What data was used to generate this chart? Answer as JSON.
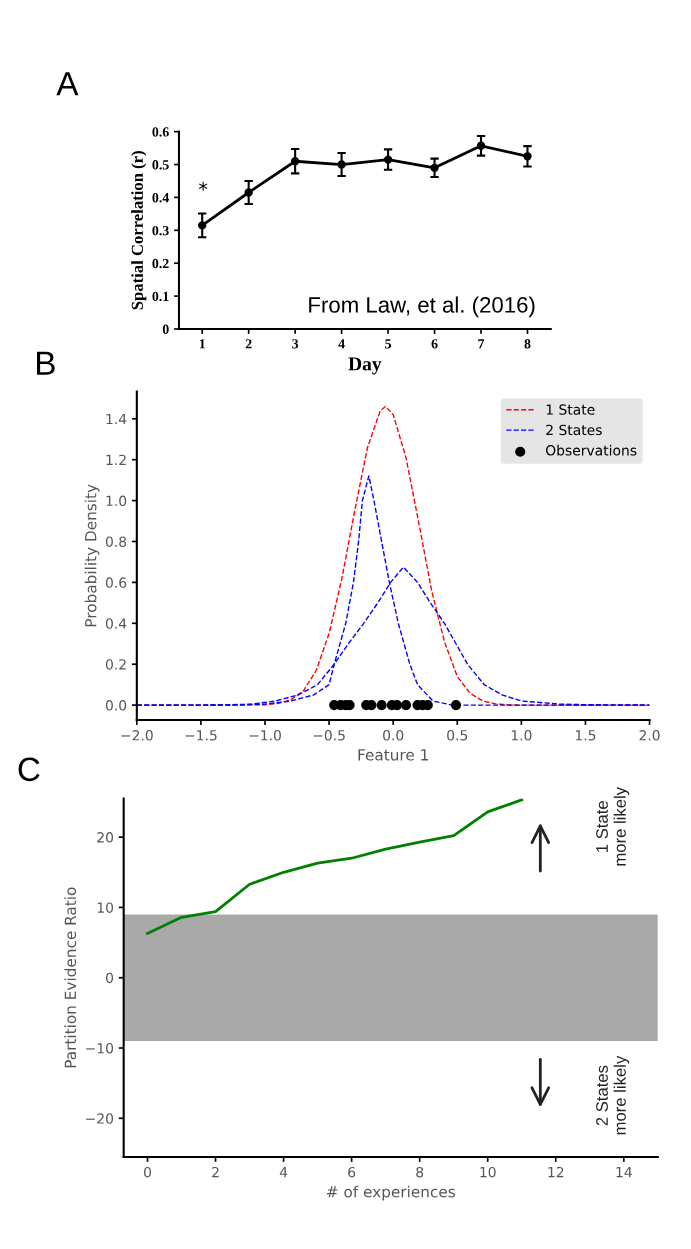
{
  "chart_data": [
    {
      "type": "line",
      "title": "A",
      "xlabel": "Day",
      "ylabel": "Spatial Correlation (r)",
      "x": [
        1,
        2,
        3,
        4,
        5,
        6,
        7,
        8
      ],
      "series": [
        {
          "color": "#000000",
          "values": [
            0.315,
            0.415,
            0.51,
            0.5,
            0.515,
            0.49,
            0.557,
            0.525
          ],
          "errors": [
            0.036,
            0.035,
            0.037,
            0.035,
            0.031,
            0.028,
            0.03,
            0.031
          ]
        }
      ],
      "marker": "circle",
      "xlim": [
        0.5,
        8.5
      ],
      "xticks": [
        1,
        2,
        3,
        4,
        5,
        6,
        7,
        8
      ],
      "ylim": [
        0,
        0.6
      ],
      "yticks": [
        0,
        0.1,
        0.2,
        0.3,
        0.4,
        0.5,
        0.6
      ],
      "annotations": [
        "*",
        "From Law, et al. (2016)"
      ]
    },
    {
      "type": "line",
      "title": "B",
      "xlabel": "Feature 1",
      "ylabel": "Probability Density",
      "line_style": "dashed",
      "legend": "top right",
      "series": [
        {
          "name": "1 State",
          "color": "#ff0000",
          "x": [
            -2,
            -1.5,
            -1.2,
            -1.0,
            -0.9,
            -0.8,
            -0.7,
            -0.6,
            -0.5,
            -0.4,
            -0.3,
            -0.2,
            -0.1,
            -0.06,
            0,
            0.1,
            0.2,
            0.3,
            0.4,
            0.5,
            0.6,
            0.7,
            0.8,
            0.9,
            1.0,
            1.5,
            2
          ],
          "values": [
            0,
            0,
            0,
            0.002,
            0.008,
            0.025,
            0.07,
            0.17,
            0.35,
            0.62,
            0.95,
            1.26,
            1.44,
            1.46,
            1.42,
            1.21,
            0.89,
            0.56,
            0.31,
            0.14,
            0.058,
            0.02,
            0.006,
            0.001,
            0,
            0,
            0
          ]
        },
        {
          "name": "2 States",
          "color": "#0000ff",
          "x": [
            -2,
            -1.5,
            -1.2,
            -1.0,
            -0.8,
            -0.62,
            -0.5,
            -0.46,
            -0.37,
            -0.31,
            -0.27,
            -0.24,
            -0.19,
            -0.15,
            -0.09,
            -0.03,
            0.04,
            0.13,
            0.19,
            0.31,
            0.46,
            0.7,
            1.0,
            1.5,
            2
          ],
          "values": [
            0,
            0,
            0.001,
            0.005,
            0.02,
            0.05,
            0.1,
            0.2,
            0.4,
            0.6,
            0.8,
            1.0,
            1.12,
            1.0,
            0.8,
            0.6,
            0.4,
            0.2,
            0.1,
            0.02,
            0,
            0,
            0,
            0,
            0
          ]
        },
        {
          "color": "#0000ff",
          "x": [
            -2,
            -1.5,
            -1.3,
            -1.1,
            -0.92,
            -0.74,
            -0.59,
            -0.46,
            -0.35,
            -0.23,
            -0.12,
            -0.02,
            0.08,
            0.19,
            0.29,
            0.4,
            0.49,
            0.58,
            0.71,
            0.85,
            1.0,
            1.3,
            1.5,
            2
          ],
          "values": [
            0,
            0,
            0.001,
            0.005,
            0.02,
            0.05,
            0.1,
            0.2,
            0.3,
            0.4,
            0.5,
            0.6,
            0.675,
            0.6,
            0.5,
            0.4,
            0.3,
            0.2,
            0.1,
            0.05,
            0.02,
            0.005,
            0.002,
            0
          ]
        },
        {
          "name": "Observations",
          "type": "scatter",
          "color": "#000000",
          "x": [
            -0.46,
            -0.41,
            -0.37,
            -0.34,
            -0.21,
            -0.17,
            -0.09,
            -0.01,
            0.03,
            0.1,
            0.19,
            0.23,
            0.27,
            0.49
          ],
          "values": [
            0,
            0,
            0,
            0,
            0,
            0,
            0,
            0,
            0,
            0,
            0,
            0,
            0,
            0
          ]
        }
      ],
      "xlim": [
        -2,
        2
      ],
      "xticks": [
        {
          "value": -2,
          "label": "−2.0"
        },
        {
          "value": -1.5,
          "label": "−1.5"
        },
        {
          "value": -1,
          "label": "−1.0"
        },
        {
          "value": -0.5,
          "label": "−0.5"
        },
        {
          "value": 0,
          "label": "0.0"
        },
        {
          "value": 0.5,
          "label": "0.5"
        },
        {
          "value": 1,
          "label": "1.0"
        },
        {
          "value": 1.5,
          "label": "1.5"
        },
        {
          "value": 2,
          "label": "2.0"
        }
      ],
      "ylim": [
        -0.073,
        1.533
      ],
      "yticks": [
        {
          "value": 0,
          "label": "0.0"
        },
        {
          "value": 0.2,
          "label": "0.2"
        },
        {
          "value": 0.4,
          "label": "0.4"
        },
        {
          "value": 0.6,
          "label": "0.6"
        },
        {
          "value": 0.8,
          "label": "0.8"
        },
        {
          "value": 1,
          "label": "1.0"
        },
        {
          "value": 1.2,
          "label": "1.2"
        },
        {
          "value": 1.4,
          "label": "1.4"
        }
      ]
    },
    {
      "type": "line",
      "title": "C",
      "xlabel": "# of experiences",
      "ylabel": "Partition Evidence Ratio",
      "x": [
        0,
        1,
        2,
        3,
        4,
        5,
        6,
        7,
        8,
        9,
        10,
        11
      ],
      "series": [
        {
          "color": "#008000",
          "values": [
            6.3,
            8.6,
            9.4,
            13.3,
            15.0,
            16.3,
            17.0,
            18.3,
            19.3,
            20.2,
            23.6,
            25.3
          ]
        }
      ],
      "bands": [
        {
          "axis": "y",
          "from": -9,
          "to": 9,
          "color": "#949494"
        }
      ],
      "xlim": [
        -0.7,
        15
      ],
      "xticks": [
        0,
        2,
        4,
        6,
        8,
        10,
        12,
        14
      ],
      "ylim": [
        -25.5,
        25.5
      ],
      "yticks": [
        {
          "value": -20,
          "label": "−20"
        },
        {
          "value": -10,
          "label": "−10"
        },
        0,
        10,
        20
      ],
      "annotations": [
        "1 State\nmore likely",
        "2 States\nmore likely"
      ]
    }
  ]
}
